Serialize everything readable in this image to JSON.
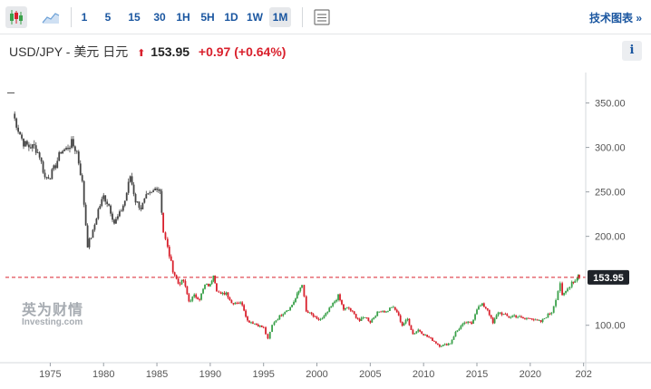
{
  "toolbar": {
    "candles_icon": "candlestick-icon",
    "area_icon": "area-chart-icon",
    "intervals": [
      "1",
      "5",
      "15",
      "30",
      "1H",
      "5H",
      "1D",
      "1W",
      "1M"
    ],
    "active_interval": "1M",
    "table_icon": "table-icon",
    "advanced_chart_label": "技术图表 »"
  },
  "header": {
    "symbol": "USD/JPY - 美元 日元",
    "arrow": "⬆",
    "last": "153.95",
    "change": "+0.97 (+0.64%)",
    "info_label": "i"
  },
  "watermark": {
    "cn": "英为财情",
    "en": "Investing.com"
  },
  "colors": {
    "up": "#3aa14a",
    "down": "#d9202c",
    "price_line": "#d9202c",
    "price_tag_bg": "#1f2329"
  },
  "chart_data": {
    "type": "candlestick",
    "x_ticks": [
      "1975",
      "1980",
      "1985",
      "1990",
      "1995",
      "2000",
      "2005",
      "2010",
      "2015",
      "2020",
      "202"
    ],
    "y_ticks": [
      "350.00",
      "300.00",
      "250.00",
      "200.00",
      "100.00"
    ],
    "current_price_label": "153.95",
    "current_price": 153.95,
    "x_range": [
      1970.8,
      2025.2
    ],
    "y_range": [
      63,
      372
    ],
    "grid": false,
    "points": [
      [
        1971.5,
        338
      ],
      [
        1972.0,
        320
      ],
      [
        1972.5,
        305
      ],
      [
        1973.0,
        301
      ],
      [
        1973.5,
        301
      ],
      [
        1974.0,
        291
      ],
      [
        1974.5,
        266
      ],
      [
        1975.0,
        268
      ],
      [
        1975.5,
        280
      ],
      [
        1976.0,
        296
      ],
      [
        1976.5,
        298
      ],
      [
        1977.0,
        305
      ],
      [
        1977.5,
        295
      ],
      [
        1978.0,
        260
      ],
      [
        1978.5,
        190
      ],
      [
        1979.0,
        205
      ],
      [
        1979.5,
        230
      ],
      [
        1980.0,
        245
      ],
      [
        1980.5,
        235
      ],
      [
        1981.0,
        215
      ],
      [
        1981.5,
        225
      ],
      [
        1982.0,
        240
      ],
      [
        1982.5,
        268
      ],
      [
        1983.0,
        240
      ],
      [
        1983.5,
        232
      ],
      [
        1984.0,
        244
      ],
      [
        1984.5,
        248
      ],
      [
        1985.0,
        256
      ],
      [
        1985.3,
        252
      ],
      [
        1985.6,
        205
      ],
      [
        1986.0,
        187
      ],
      [
        1986.5,
        162
      ],
      [
        1987.0,
        147
      ],
      [
        1987.5,
        150
      ],
      [
        1988.0,
        127
      ],
      [
        1988.5,
        133
      ],
      [
        1989.0,
        130
      ],
      [
        1989.5,
        145
      ],
      [
        1990.0,
        145
      ],
      [
        1990.3,
        158
      ],
      [
        1990.6,
        140
      ],
      [
        1991.0,
        134
      ],
      [
        1991.5,
        137
      ],
      [
        1992.0,
        125
      ],
      [
        1992.5,
        126
      ],
      [
        1993.0,
        124
      ],
      [
        1993.5,
        105
      ],
      [
        1994.0,
        103
      ],
      [
        1994.5,
        100
      ],
      [
        1995.0,
        97
      ],
      [
        1995.4,
        84
      ],
      [
        1995.8,
        100
      ],
      [
        1996.0,
        104
      ],
      [
        1996.5,
        110
      ],
      [
        1997.0,
        116
      ],
      [
        1997.5,
        120
      ],
      [
        1998.0,
        130
      ],
      [
        1998.6,
        147
      ],
      [
        1999.0,
        115
      ],
      [
        1999.5,
        112
      ],
      [
        2000.0,
        106
      ],
      [
        2000.5,
        107
      ],
      [
        2001.0,
        115
      ],
      [
        2001.5,
        124
      ],
      [
        2002.0,
        133
      ],
      [
        2002.5,
        118
      ],
      [
        2003.0,
        119
      ],
      [
        2003.5,
        112
      ],
      [
        2004.0,
        105
      ],
      [
        2004.5,
        110
      ],
      [
        2005.0,
        104
      ],
      [
        2005.5,
        112
      ],
      [
        2006.0,
        117
      ],
      [
        2006.5,
        115
      ],
      [
        2007.0,
        121
      ],
      [
        2007.5,
        115
      ],
      [
        2008.0,
        100
      ],
      [
        2008.5,
        107
      ],
      [
        2009.0,
        90
      ],
      [
        2009.5,
        95
      ],
      [
        2010.0,
        90
      ],
      [
        2010.5,
        86
      ],
      [
        2011.0,
        82
      ],
      [
        2011.5,
        77
      ],
      [
        2012.0,
        78
      ],
      [
        2012.5,
        80
      ],
      [
        2013.0,
        92
      ],
      [
        2013.5,
        99
      ],
      [
        2014.0,
        103
      ],
      [
        2014.5,
        102
      ],
      [
        2015.0,
        119
      ],
      [
        2015.5,
        123
      ],
      [
        2016.0,
        118
      ],
      [
        2016.5,
        102
      ],
      [
        2017.0,
        115
      ],
      [
        2017.5,
        112
      ],
      [
        2018.0,
        109
      ],
      [
        2018.5,
        111
      ],
      [
        2019.0,
        109
      ],
      [
        2019.5,
        107
      ],
      [
        2020.0,
        109
      ],
      [
        2020.5,
        105
      ],
      [
        2021.0,
        104
      ],
      [
        2021.5,
        110
      ],
      [
        2022.0,
        115
      ],
      [
        2022.4,
        130
      ],
      [
        2022.8,
        148
      ],
      [
        2023.0,
        132
      ],
      [
        2023.5,
        141
      ],
      [
        2023.9,
        149
      ],
      [
        2024.2,
        150
      ],
      [
        2024.4,
        154
      ],
      [
        2024.5,
        158
      ],
      [
        2024.6,
        153.95
      ]
    ]
  }
}
